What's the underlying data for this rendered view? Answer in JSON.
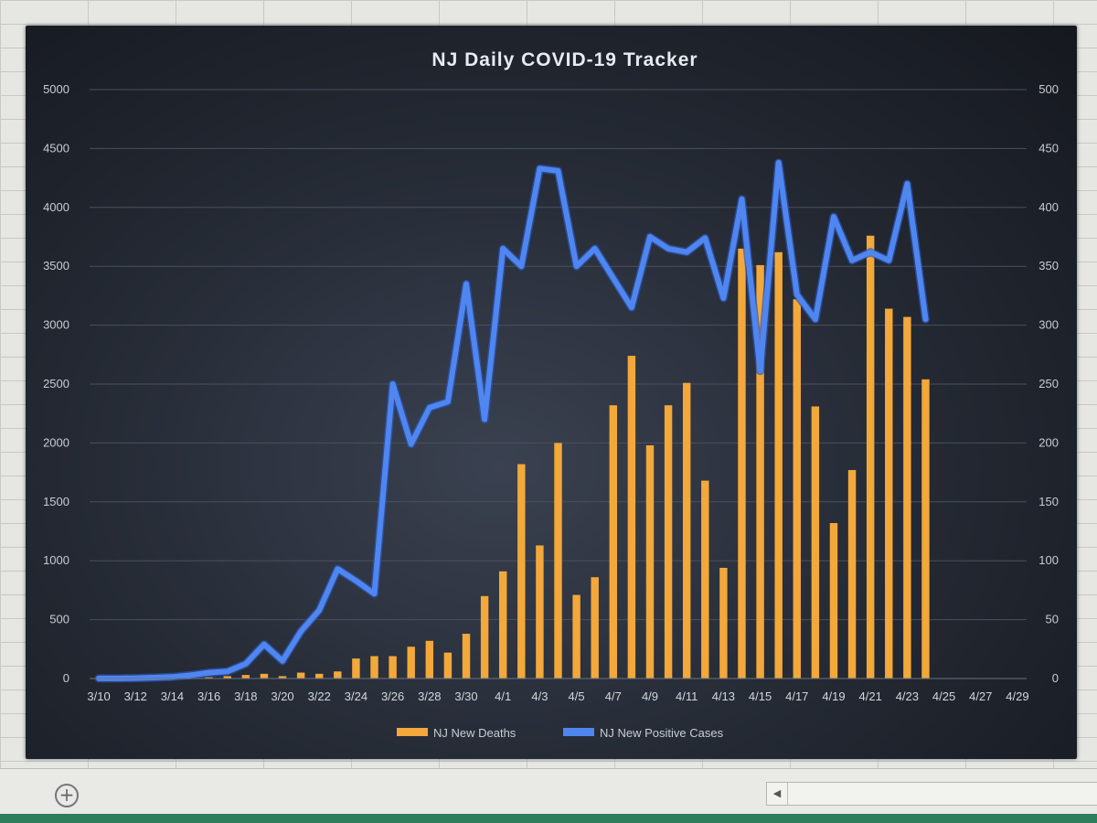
{
  "chart_data": {
    "type": "bar+line",
    "title": "NJ Daily COVID-19 Tracker",
    "categories": [
      "3/10",
      "3/11",
      "3/12",
      "3/13",
      "3/14",
      "3/15",
      "3/16",
      "3/17",
      "3/18",
      "3/19",
      "3/20",
      "3/21",
      "3/22",
      "3/23",
      "3/24",
      "3/25",
      "3/26",
      "3/27",
      "3/28",
      "3/29",
      "3/30",
      "3/31",
      "4/1",
      "4/2",
      "4/3",
      "4/4",
      "4/5",
      "4/6",
      "4/7",
      "4/8",
      "4/9",
      "4/10",
      "4/11",
      "4/12",
      "4/13",
      "4/14",
      "4/15",
      "4/16",
      "4/17",
      "4/18",
      "4/19",
      "4/20",
      "4/21",
      "4/22",
      "4/23",
      "4/24",
      "4/25",
      "4/26",
      "4/27",
      "4/28",
      "4/29"
    ],
    "x_tick_labels": [
      "3/10",
      "3/12",
      "3/14",
      "3/16",
      "3/18",
      "3/20",
      "3/22",
      "3/24",
      "3/26",
      "3/28",
      "3/30",
      "4/1",
      "4/3",
      "4/5",
      "4/7",
      "4/9",
      "4/11",
      "4/13",
      "4/15",
      "4/17",
      "4/19",
      "4/21",
      "4/23",
      "4/25",
      "4/27",
      "4/29"
    ],
    "series": [
      {
        "name": "NJ New Deaths",
        "type": "bar",
        "axis": "secondary",
        "color": "#f2a83a",
        "values": [
          0,
          0,
          0,
          0,
          0,
          0,
          1,
          2,
          3,
          4,
          2,
          5,
          4,
          6,
          17,
          19,
          19,
          27,
          32,
          22,
          38,
          70,
          91,
          182,
          113,
          200,
          71,
          86,
          232,
          274,
          198,
          232,
          251,
          168,
          94,
          365,
          351,
          362,
          322,
          231,
          132,
          177,
          376,
          314,
          307,
          254,
          null,
          null,
          null,
          null,
          null
        ]
      },
      {
        "name": "NJ New Positive Cases",
        "type": "line",
        "axis": "primary",
        "color": "#4f86f0",
        "values": [
          1,
          1,
          3,
          8,
          13,
          29,
          50,
          60,
          125,
          290,
          150,
          400,
          580,
          930,
          830,
          720,
          2500,
          1990,
          2300,
          2350,
          3350,
          2200,
          3650,
          3500,
          4330,
          4310,
          3500,
          3650,
          3400,
          3150,
          3750,
          3650,
          3620,
          3740,
          3230,
          4070,
          2610,
          4380,
          3260,
          3050,
          3920,
          3550,
          3620,
          3550,
          4200,
          3050,
          null,
          null,
          null,
          null,
          null
        ]
      }
    ],
    "y_primary": {
      "min": 0,
      "max": 5000,
      "ticks": [
        "0",
        "500",
        "1000",
        "1500",
        "2000",
        "2500",
        "3000",
        "3500",
        "4000",
        "4500",
        "5000"
      ]
    },
    "y_secondary": {
      "min": 0,
      "max": 500,
      "ticks": [
        "0",
        "50",
        "100",
        "150",
        "200",
        "250",
        "300",
        "350",
        "400",
        "450",
        "500"
      ]
    },
    "grid": true,
    "legend": "bottom"
  }
}
